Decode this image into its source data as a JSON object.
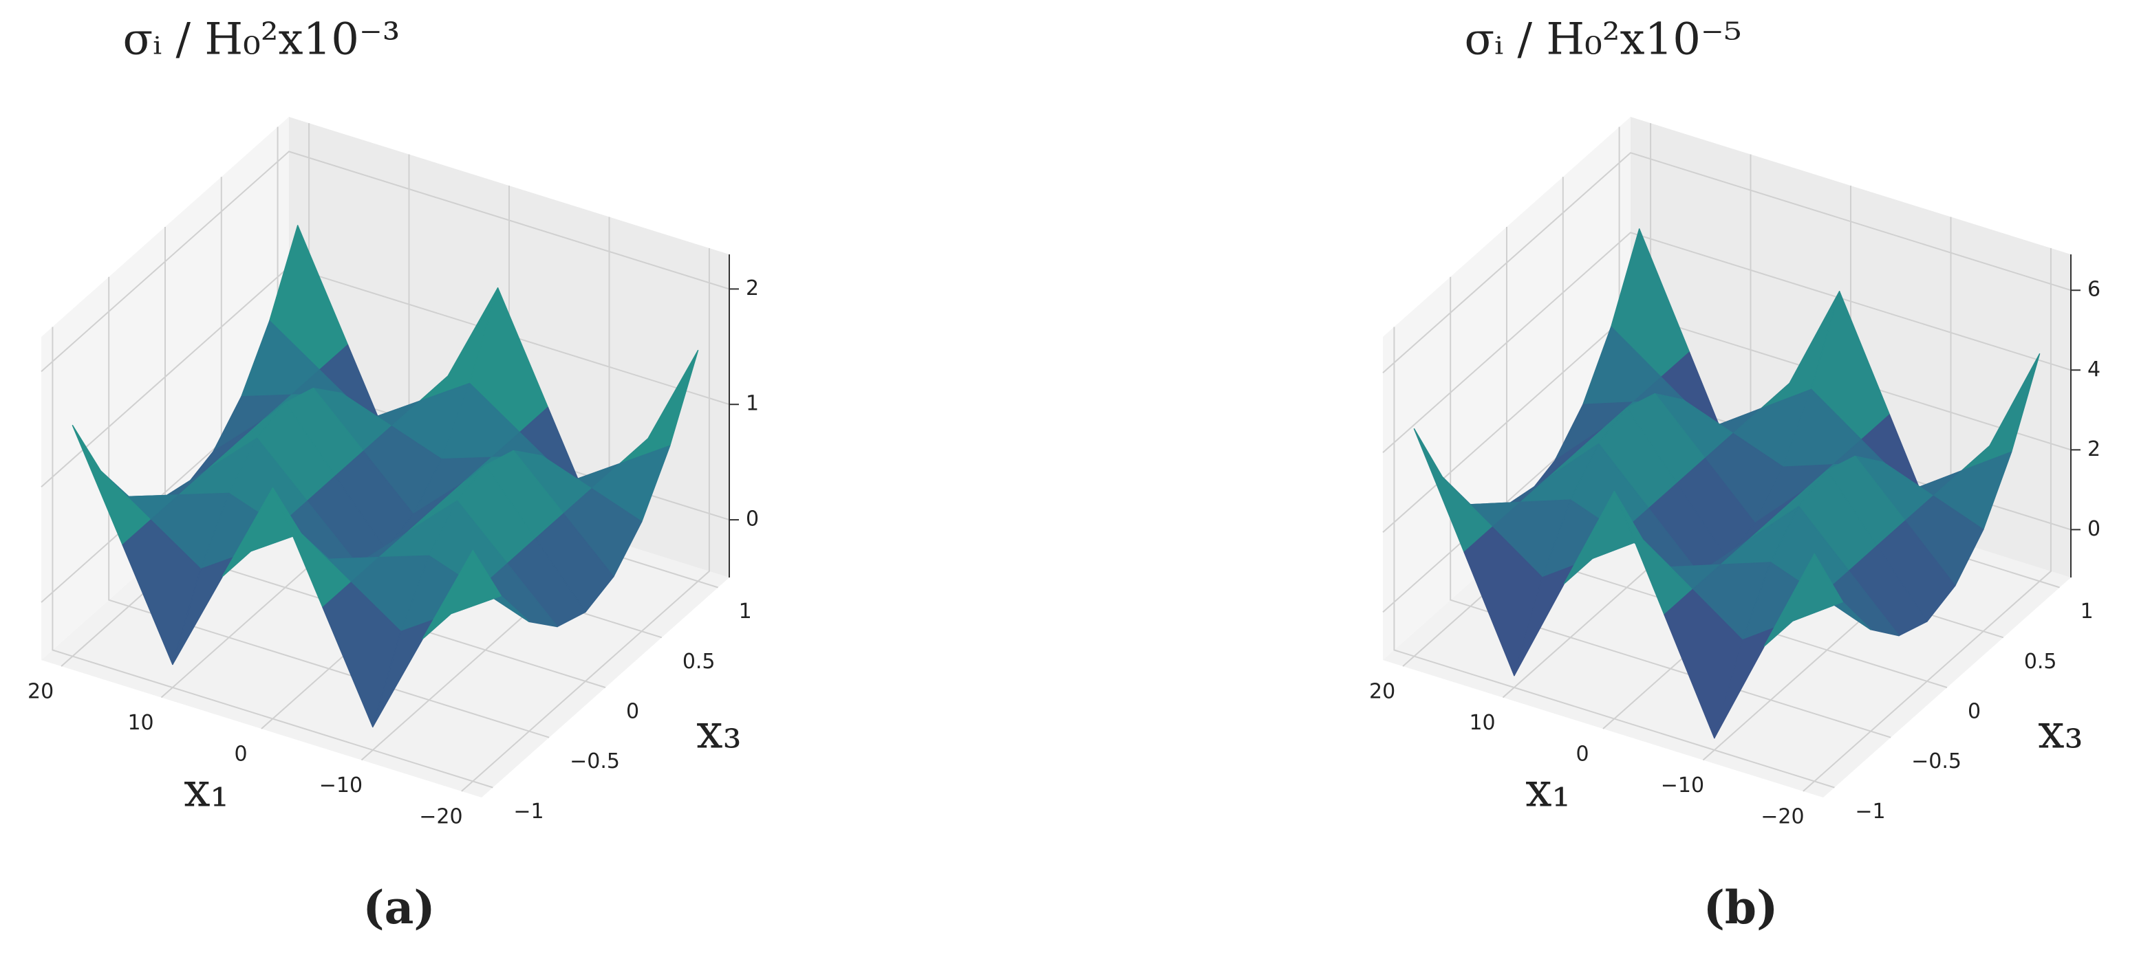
{
  "chart_data": [
    {
      "type": "surface3d",
      "title": "σᵢ / H₀²x10⁻³",
      "panel_label": "(a)",
      "xlabel": "x₁",
      "ylabel": "x₃",
      "x": [
        -20,
        -15,
        -10,
        -5,
        0,
        5,
        10,
        15,
        20
      ],
      "y": [
        -1,
        -0.75,
        -0.5,
        -0.25,
        0,
        0.25,
        0.5,
        0.75,
        1
      ],
      "z": [
        [
          1.5,
          0.6,
          -0.3,
          0.6,
          1.5,
          0.6,
          -0.3,
          0.6,
          1.5
        ],
        [
          0.89,
          0.6,
          0.31,
          0.6,
          0.89,
          0.6,
          0.31,
          0.6,
          0.89
        ],
        [
          0.45,
          0.6,
          0.75,
          0.6,
          0.45,
          0.6,
          0.75,
          0.6,
          0.45
        ],
        [
          0.19,
          0.6,
          1.01,
          0.6,
          0.19,
          0.6,
          1.01,
          0.6,
          0.19
        ],
        [
          0.1,
          0.6,
          1.1,
          0.6,
          0.1,
          0.6,
          1.1,
          0.6,
          0.1
        ],
        [
          0.19,
          0.6,
          1.01,
          0.6,
          0.19,
          0.6,
          1.01,
          0.6,
          0.19
        ],
        [
          0.45,
          0.6,
          0.75,
          0.6,
          0.45,
          0.6,
          0.75,
          0.6,
          0.45
        ],
        [
          0.89,
          0.6,
          0.31,
          0.6,
          0.89,
          0.6,
          0.31,
          0.6,
          0.89
        ],
        [
          1.5,
          0.6,
          -0.3,
          0.6,
          1.5,
          0.6,
          -0.3,
          0.6,
          1.5
        ]
      ],
      "xlim": [
        -22,
        22
      ],
      "ylim": [
        -1.1,
        1.1
      ],
      "zlim": [
        -0.5,
        2.3
      ],
      "xticks": [
        {
          "value": -20,
          "label": "−20"
        },
        {
          "value": -10,
          "label": "−10"
        },
        0,
        10,
        20
      ],
      "yticks": [
        {
          "value": -1,
          "label": "−1"
        },
        {
          "value": -0.5,
          "label": "−0.5"
        },
        0,
        0.5,
        1
      ],
      "zticks": [
        0,
        1,
        2
      ],
      "colormap": "viridis",
      "grid": true
    },
    {
      "type": "surface3d",
      "title": "σᵢ / H₀²x10⁻⁵",
      "panel_label": "(b)",
      "xlabel": "x₁",
      "ylabel": "x₃",
      "x": [
        -20,
        -15,
        -10,
        -5,
        0,
        5,
        10,
        15,
        20
      ],
      "y": [
        -1,
        -0.75,
        -0.5,
        -0.25,
        0,
        0.25,
        0.5,
        0.75,
        1
      ],
      "z": [
        [
          4.5,
          1.8,
          -0.9,
          1.8,
          4.5,
          1.8,
          -0.9,
          1.8,
          4.5
        ],
        [
          2.67,
          1.8,
          0.93,
          1.8,
          2.67,
          1.8,
          0.93,
          1.8,
          2.67
        ],
        [
          1.35,
          1.8,
          2.25,
          1.8,
          1.35,
          1.8,
          2.25,
          1.8,
          1.35
        ],
        [
          0.57,
          1.8,
          3.03,
          1.8,
          0.57,
          1.8,
          3.03,
          1.8,
          0.57
        ],
        [
          0.3,
          1.8,
          3.3,
          1.8,
          0.3,
          1.8,
          3.3,
          1.8,
          0.3
        ],
        [
          0.57,
          1.8,
          3.03,
          1.8,
          0.57,
          1.8,
          3.03,
          1.8,
          0.57
        ],
        [
          1.35,
          1.8,
          2.25,
          1.8,
          1.35,
          1.8,
          2.25,
          1.8,
          1.35
        ],
        [
          2.67,
          1.8,
          0.93,
          1.8,
          2.67,
          1.8,
          0.93,
          1.8,
          2.67
        ],
        [
          4.5,
          1.8,
          -0.9,
          1.8,
          4.5,
          1.8,
          -0.9,
          1.8,
          4.5
        ]
      ],
      "xlim": [
        -22,
        22
      ],
      "ylim": [
        -1.1,
        1.1
      ],
      "zlim": [
        -1.2,
        6.9
      ],
      "xticks": [
        {
          "value": -20,
          "label": "−20"
        },
        {
          "value": -10,
          "label": "−10"
        },
        0,
        10,
        20
      ],
      "yticks": [
        {
          "value": -1,
          "label": "−1"
        },
        {
          "value": -0.5,
          "label": "−0.5"
        },
        0,
        0.5,
        1
      ],
      "zticks": [
        0,
        2,
        4,
        6
      ],
      "colormap": "viridis",
      "grid": true
    }
  ]
}
